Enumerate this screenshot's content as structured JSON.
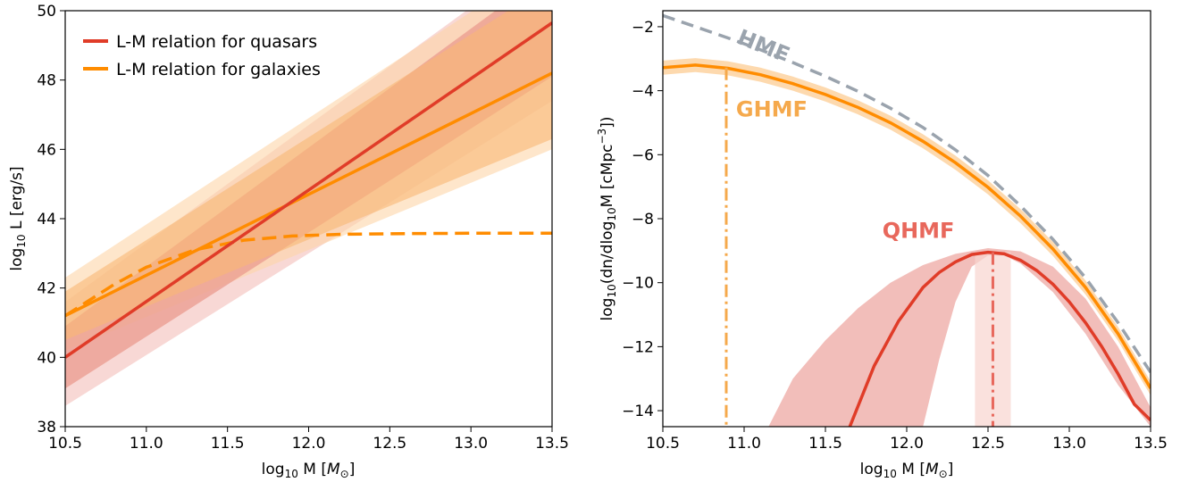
{
  "chart_data": [
    {
      "type": "line",
      "xlabel_main": "log",
      "xlabel_sub": "10",
      "xlabel_rest": " M [",
      "xlabel_sym": "M",
      "xlabel_symsub": "⊙",
      "xlabel_end": "]",
      "ylabel_main": "log",
      "ylabel_sub": "10",
      "ylabel_rest": " L [erg/s]",
      "xlim": [
        10.5,
        13.5
      ],
      "ylim": [
        38,
        50
      ],
      "xticks": [
        "10.5",
        "11.0",
        "11.5",
        "12.0",
        "12.5",
        "13.0",
        "13.5"
      ],
      "xtick_values": [
        10.5,
        11.0,
        11.5,
        12.0,
        12.5,
        13.0,
        13.5
      ],
      "yticks": [
        "38",
        "40",
        "42",
        "44",
        "46",
        "48",
        "50"
      ],
      "ytick_values": [
        38,
        40,
        42,
        44,
        46,
        48,
        50
      ],
      "legend": {
        "placement": "top-left"
      },
      "series": [
        {
          "name": "L-M relation for quasars",
          "color": "#e03c28",
          "x": [
            10.5,
            13.5
          ],
          "y": [
            40.0,
            49.65
          ],
          "band_inner": {
            "lower": [
              39.1,
              48.1
            ],
            "upper": [
              40.9,
              51.2
            ]
          },
          "band_outer": {
            "lower": [
              38.6,
              47.4
            ],
            "upper": [
              41.6,
              51.8
            ]
          }
        },
        {
          "name": "L-M relation for galaxies",
          "color": "#ff8c00",
          "x": [
            10.5,
            13.5
          ],
          "y": [
            41.2,
            48.2
          ],
          "band_inner": {
            "lower": [
              40.5,
              46.3
            ],
            "upper": [
              41.9,
              50.8
            ]
          },
          "band_outer": {
            "lower": [
              40.2,
              46.0
            ],
            "upper": [
              42.3,
              51.5
            ]
          }
        },
        {
          "name": "",
          "style": "dashed",
          "color": "#ff8c00",
          "x": [
            10.5,
            10.8,
            11.0,
            11.3,
            11.6,
            11.9,
            12.2,
            12.6,
            13.0,
            13.5
          ],
          "y": [
            41.2,
            42.1,
            42.6,
            43.1,
            43.38,
            43.5,
            43.55,
            43.57,
            43.58,
            43.58
          ]
        }
      ]
    },
    {
      "type": "line",
      "xlabel_main": "log",
      "xlabel_sub": "10",
      "xlabel_rest": " M [",
      "xlabel_sym": "M",
      "xlabel_symsub": "⊙",
      "xlabel_end": "]",
      "ylabel_main": "log",
      "ylabel_sub": "10",
      "ylabel_rest": "(dn/dlog",
      "ylabel_sub2": "10",
      "ylabel_rest2": "M [cMpc",
      "ylabel_sup": "−3",
      "ylabel_end": "])",
      "xlim": [
        10.5,
        13.5
      ],
      "ylim": [
        -14.5,
        -1.5
      ],
      "xticks": [
        "10.5",
        "11.0",
        "11.5",
        "12.0",
        "12.5",
        "13.0",
        "13.5"
      ],
      "xtick_values": [
        10.5,
        11.0,
        11.5,
        12.0,
        12.5,
        13.0,
        13.5
      ],
      "yticks": [
        "−14",
        "−12",
        "−10",
        "−8",
        "−6",
        "−4",
        "−2"
      ],
      "ytick_values": [
        -14,
        -12,
        -10,
        -8,
        -6,
        -4,
        -2
      ],
      "annotations": [
        {
          "text": "HMF",
          "x": 10.95,
          "y": -2.5,
          "color": "#9aa3ad"
        },
        {
          "text": "GHMF",
          "x": 10.95,
          "y": -4.8,
          "color": "#f5a94c"
        },
        {
          "text": "QHMF",
          "x": 11.85,
          "y": -8.6,
          "color": "#e8685c"
        }
      ],
      "series": [
        {
          "name": "HMF",
          "style": "dashed",
          "color": "#9aa3ad",
          "x": [
            10.5,
            10.7,
            10.9,
            11.1,
            11.3,
            11.5,
            11.7,
            11.9,
            12.1,
            12.3,
            12.5,
            12.7,
            12.9,
            13.1,
            13.3,
            13.5
          ],
          "y": [
            -1.65,
            -2.0,
            -2.35,
            -2.72,
            -3.12,
            -3.55,
            -4.02,
            -4.55,
            -5.15,
            -5.85,
            -6.65,
            -7.6,
            -8.65,
            -9.85,
            -11.25,
            -12.8
          ]
        },
        {
          "name": "GHMF",
          "color": "#ff8c00",
          "x": [
            10.5,
            10.7,
            10.9,
            11.1,
            11.3,
            11.5,
            11.7,
            11.9,
            12.1,
            12.3,
            12.5,
            12.7,
            12.9,
            13.1,
            13.3,
            13.5
          ],
          "y": [
            -3.28,
            -3.2,
            -3.3,
            -3.5,
            -3.78,
            -4.12,
            -4.52,
            -5.0,
            -5.58,
            -6.25,
            -7.02,
            -7.92,
            -8.95,
            -10.15,
            -11.6,
            -13.3
          ],
          "band": {
            "halfwidth": 0.22
          }
        },
        {
          "name": "QHMF",
          "color": "#e03c28",
          "x": [
            11.65,
            11.8,
            11.95,
            12.1,
            12.2,
            12.3,
            12.4,
            12.5,
            12.6,
            12.7,
            12.8,
            12.9,
            13.0,
            13.1,
            13.2,
            13.3,
            13.4,
            13.5
          ],
          "y": [
            -14.5,
            -12.6,
            -11.2,
            -10.15,
            -9.68,
            -9.35,
            -9.12,
            -9.05,
            -9.1,
            -9.3,
            -9.62,
            -10.05,
            -10.6,
            -11.25,
            -12.0,
            -12.85,
            -13.8,
            -14.3
          ],
          "band": {
            "upper_x": [
              11.15,
              11.3,
              11.5,
              11.7,
              11.9,
              12.1,
              12.3,
              12.5,
              12.7,
              12.9,
              13.1,
              13.3,
              13.5
            ],
            "upper_y": [
              -14.5,
              -13.0,
              -11.8,
              -10.8,
              -10.0,
              -9.45,
              -9.1,
              -8.92,
              -9.02,
              -9.5,
              -10.5,
              -12.0,
              -13.9
            ],
            "lower_x": [
              13.5,
              13.3,
              13.1,
              12.9,
              12.7,
              12.6,
              12.5,
              12.4,
              12.3,
              12.2,
              12.1
            ],
            "lower_y": [
              -14.5,
              -13.2,
              -11.6,
              -10.3,
              -9.4,
              -9.15,
              -9.15,
              -9.5,
              -10.6,
              -12.4,
              -14.5
            ]
          }
        }
      ],
      "vlines": [
        {
          "x": 10.89,
          "y_top": -3.28,
          "color": "#f5a94c",
          "style": "dashdot"
        },
        {
          "x": 12.53,
          "y_top": -9.05,
          "color": "#e8685c",
          "style": "dashdot",
          "span": [
            12.42,
            12.64
          ]
        }
      ]
    }
  ]
}
